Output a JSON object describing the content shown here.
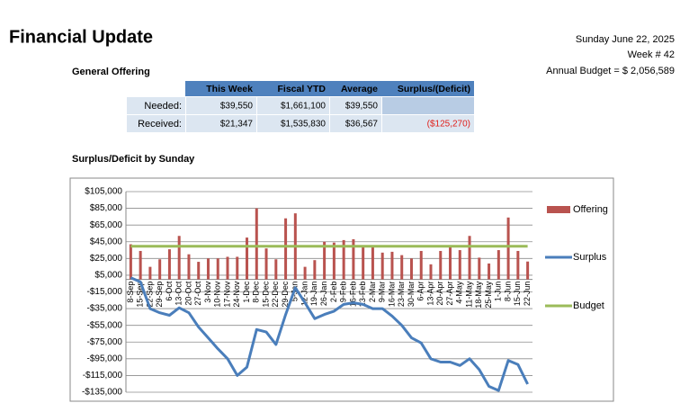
{
  "header": {
    "title": "Financial Update",
    "date": "Sunday June 22, 2025",
    "week": "Week # 42",
    "budget": "Annual Budget = $ 2,056,589",
    "section": "General Offering"
  },
  "table": {
    "columns": [
      "This Week",
      "Fiscal YTD",
      "Average",
      "Surplus/(Deficit)"
    ],
    "rows": [
      {
        "label": "Needed:",
        "cells": [
          "$39,550",
          "$1,661,100",
          "$39,550"
        ]
      },
      {
        "label": "Received:",
        "cells": [
          "$21,347",
          "$1,535,830",
          "$36,567",
          "($125,270)"
        ]
      }
    ]
  },
  "chart_data": {
    "type": "combo",
    "title": "Surplus/Deficit by Sunday",
    "categories": [
      "8-Sep",
      "15-Sep",
      "22-Sep",
      "29-Sep",
      "6-Oct",
      "13-Oct",
      "20-Oct",
      "27-Oct",
      "3-Nov",
      "10-Nov",
      "17-Nov",
      "24-Nov",
      "1-Dec",
      "8-Dec",
      "15-Dec",
      "22-Dec",
      "29-Dec",
      "5-Jan",
      "12-Jan",
      "19-Jan",
      "26-Jan",
      "2-Feb",
      "9-Feb",
      "16-Feb",
      "23-Feb",
      "2-Mar",
      "9-Mar",
      "16-Mar",
      "23-Mar",
      "30-Mar",
      "6-Apr",
      "13-Apr",
      "20-Apr",
      "27-Apr",
      "4-May",
      "11-May",
      "18-May",
      "25-May",
      "1-Jun",
      "8-Jun",
      "15-Jun",
      "22-Jun"
    ],
    "series": [
      {
        "name": "Offering",
        "type": "bar",
        "color": "#b9534f",
        "values": [
          42000,
          34000,
          15000,
          24000,
          36000,
          52000,
          30000,
          21000,
          25000,
          25000,
          27000,
          27000,
          50000,
          85000,
          37000,
          24000,
          73000,
          79000,
          15000,
          23000,
          45000,
          44000,
          47000,
          48000,
          40000,
          40000,
          32000,
          33000,
          29000,
          25000,
          34000,
          18000,
          34000,
          40000,
          35000,
          52000,
          26000,
          19000,
          35000,
          74000,
          34000,
          21347
        ]
      },
      {
        "name": "Surplus",
        "type": "line",
        "color": "#4a7ebb",
        "values": [
          2000,
          -3000,
          -35000,
          -40000,
          -43000,
          -34000,
          -40000,
          -57000,
          -70000,
          -83000,
          -95000,
          -115000,
          -105000,
          -60000,
          -63000,
          -78000,
          -42000,
          -10000,
          -28000,
          -47000,
          -42000,
          -38000,
          -30000,
          -28000,
          -30000,
          -35000,
          -35000,
          -44000,
          -55000,
          -70000,
          -76000,
          -95000,
          -99000,
          -99000,
          -103000,
          -95000,
          -108000,
          -128000,
          -133000,
          -97000,
          -102000,
          -125270
        ]
      },
      {
        "name": "Budget",
        "type": "line",
        "color": "#9bbb59",
        "values": [
          39550,
          39550,
          39550,
          39550,
          39550,
          39550,
          39550,
          39550,
          39550,
          39550,
          39550,
          39550,
          39550,
          39550,
          39550,
          39550,
          39550,
          39550,
          39550,
          39550,
          39550,
          39550,
          39550,
          39550,
          39550,
          39550,
          39550,
          39550,
          39550,
          39550,
          39550,
          39550,
          39550,
          39550,
          39550,
          39550,
          39550,
          39550,
          39550,
          39550,
          39550,
          39550
        ]
      }
    ],
    "ylim": [
      -135000,
      105000
    ],
    "yticks": [
      {
        "value": 105000,
        "label": "$105,000"
      },
      {
        "value": 85000,
        "label": "$85,000"
      },
      {
        "value": 65000,
        "label": "$65,000"
      },
      {
        "value": 45000,
        "label": "$45,000"
      },
      {
        "value": 25000,
        "label": "$25,000"
      },
      {
        "value": 5000,
        "label": "$5,000"
      },
      {
        "value": -15000,
        "label": "-$15,000"
      },
      {
        "value": -35000,
        "label": "-$35,000"
      },
      {
        "value": -55000,
        "label": "-$55,000"
      },
      {
        "value": -75000,
        "label": "-$75,000"
      },
      {
        "value": -95000,
        "label": "-$95,000"
      },
      {
        "value": -115000,
        "label": "-$115,000"
      },
      {
        "value": -135000,
        "label": "-$135,000"
      }
    ],
    "grid": true,
    "legend": "right"
  }
}
